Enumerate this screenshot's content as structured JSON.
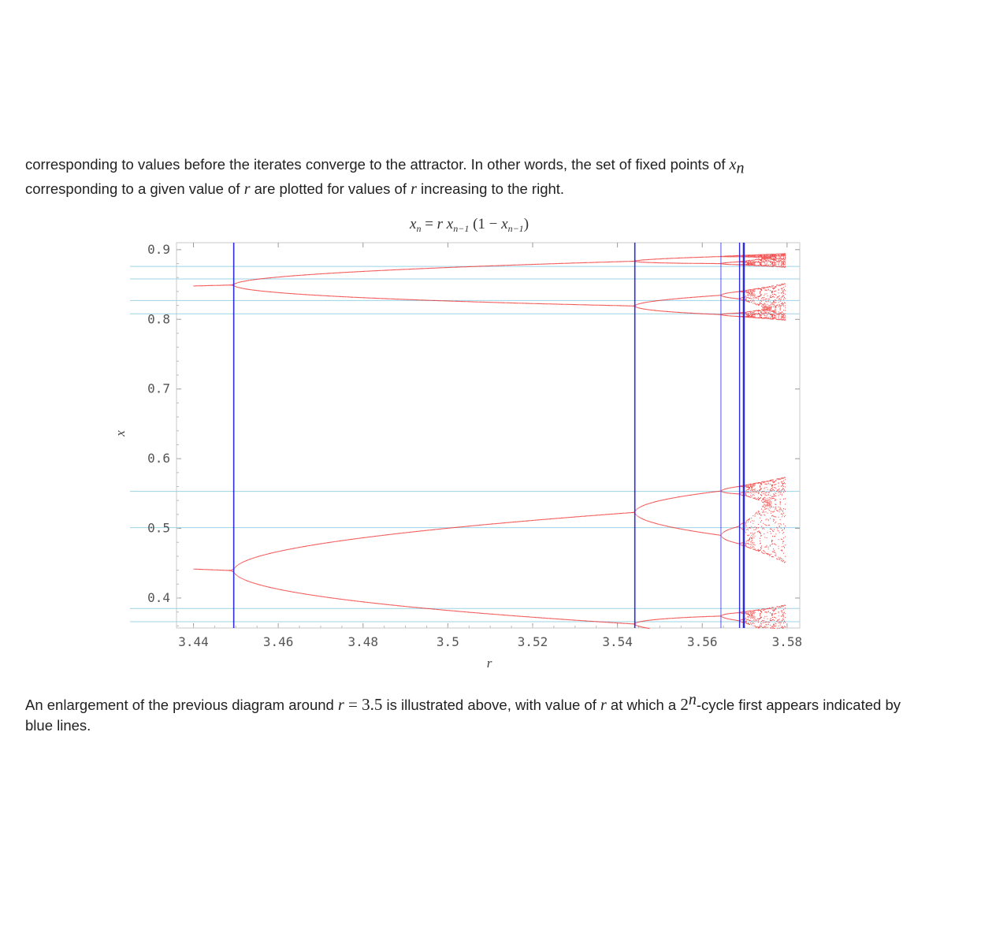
{
  "text": {
    "top_line1_before": "corresponding to values before the iterates converge to the attractor. In other words, the set of fixed points of ",
    "top_line1_var": "x",
    "top_line1_sub": "n",
    "top_line2_before": "corresponding to a given value of ",
    "top_line2_var": "r",
    "top_line2_after": " are plotted for values of ",
    "top_line2_var2": "r",
    "top_line2_end": " increasing to the right.",
    "bottom_1": "An enlargement of the previous diagram around ",
    "bottom_var": "r",
    "bottom_eq": " = 3.5",
    "bottom_2": " is illustrated above, with value of ",
    "bottom_var2": "r",
    "bottom_3": " at which a ",
    "bottom_pow_base": "2",
    "bottom_pow_exp": "n",
    "bottom_4": "-cycle first appears indicated by blue lines."
  },
  "chart_data": {
    "type": "scatter",
    "title": "x_n = r x_{n-1} (1 − x_{n-1})",
    "xlabel": "r",
    "ylabel": "x",
    "xlim": [
      3.436,
      3.583
    ],
    "ylim": [
      0.357,
      0.91
    ],
    "xticks": [
      "3.44",
      "3.46",
      "3.48",
      "3.5",
      "3.52",
      "3.54",
      "3.56",
      "3.58"
    ],
    "yticks": [
      "0.9",
      "0.8",
      "0.7",
      "0.6",
      "0.5",
      "0.4"
    ],
    "series_color": "#ee1c1c",
    "bifurcation_color": "#2222dd",
    "guide_color": "#9cd3e6",
    "bifurcation_r": [
      3.4495,
      3.5441,
      3.5644,
      3.5688,
      3.5697,
      3.5699
    ],
    "guide_x": [
      0.876,
      0.858,
      0.827,
      0.808,
      0.553,
      0.501,
      0.385,
      0.366
    ]
  }
}
